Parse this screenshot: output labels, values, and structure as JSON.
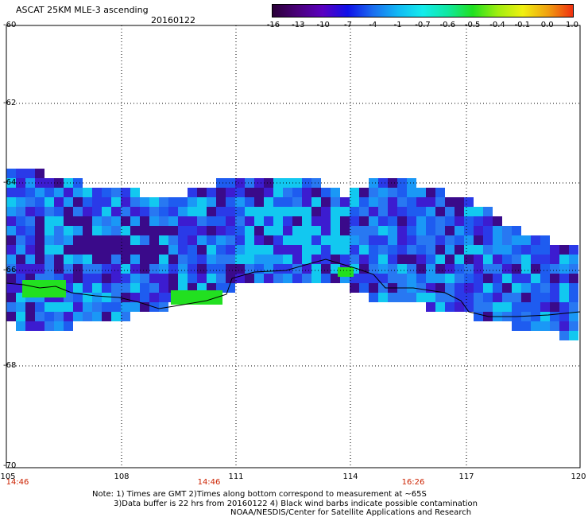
{
  "header": {
    "title": "ASCAT 25KM MLE-3 ascending",
    "date": "20160122"
  },
  "colorbar": {
    "labels": [
      "-16",
      "-13",
      "-10",
      "-7",
      "-4",
      "-1",
      "-0.7",
      "-0.6",
      "-0.5",
      "-0.4",
      "-0.1",
      "0.0",
      "1.0"
    ],
    "colors": [
      "#2a0038",
      "#4a007a",
      "#5a00c0",
      "#1010e8",
      "#1a6cf0",
      "#12b8f4",
      "#14ecec",
      "#10e8a0",
      "#20e020",
      "#a0ee10",
      "#f0f010",
      "#f0a010",
      "#f03010"
    ]
  },
  "axes": {
    "lat_ticks": [
      "-60",
      "-62",
      "-64",
      "-66",
      "-68",
      "-70"
    ],
    "lon_ticks": [
      "105",
      "108",
      "111",
      "114",
      "117",
      "120"
    ],
    "time_labels": [
      "14:46",
      "14:46",
      "16:26"
    ]
  },
  "notes": [
    "Note: 1) Times are GMT 2)Times along bottom correspond to measurement at ~65S",
    "3)Data buffer is 22 hrs from 20160122 4) Black wind barbs indicate possible contamination",
    "NOAA/NESDIS/Center for Satellite Applications and Research"
  ]
}
